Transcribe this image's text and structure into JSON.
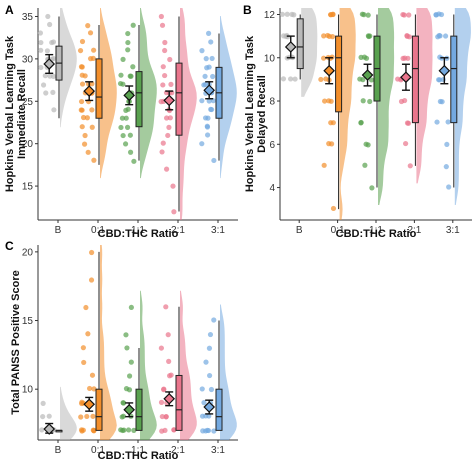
{
  "chart_data": [
    {
      "panel": "A",
      "type": "raincloud",
      "xlabel": "CBD:THC Ratio",
      "ylabel": [
        "Hopkins Verbal Learning Task",
        "Immediate Recall"
      ],
      "categories": [
        "B",
        "0:1",
        "1:1",
        "2:1",
        "3:1"
      ],
      "ylim": [
        11,
        36
      ],
      "yticks": [
        15,
        20,
        25,
        30,
        35
      ],
      "colors": [
        "#b9b9b9",
        "#f28e2b",
        "#59a14f",
        "#e9758c",
        "#74a9e0"
      ],
      "means": [
        29.4,
        26.2,
        25.7,
        25.1,
        26.3
      ],
      "ci": [
        [
          28.3,
          30.5
        ],
        [
          25.1,
          27.3
        ],
        [
          24.6,
          26.8
        ],
        [
          24.0,
          26.2
        ],
        [
          25.3,
          27.3
        ]
      ],
      "box": [
        [
          27.5,
          29.5,
          31.5
        ],
        [
          23.0,
          25.5,
          30.0
        ],
        [
          22.0,
          26.0,
          28.5
        ],
        [
          21.0,
          26.0,
          29.5
        ],
        [
          23.0,
          26.0,
          29.0
        ]
      ],
      "whisker": [
        [
          23.0,
          35.0
        ],
        [
          17.5,
          34.0
        ],
        [
          18.0,
          34.0
        ],
        [
          12.0,
          35.0
        ],
        [
          18.0,
          33.0
        ]
      ],
      "points": [
        [
          24,
          26,
          27,
          28,
          28,
          29,
          29,
          30,
          30,
          30,
          31,
          31,
          32,
          32,
          33,
          34,
          35,
          26,
          28,
          30,
          32
        ],
        [
          18,
          19,
          20,
          21,
          22,
          23,
          23,
          24,
          24,
          25,
          25,
          26,
          26,
          26,
          27,
          27,
          28,
          28,
          29,
          29,
          30,
          30,
          31,
          32,
          33,
          34,
          22,
          24,
          27,
          31
        ],
        [
          18,
          19,
          20,
          21,
          22,
          22,
          23,
          23,
          24,
          25,
          25,
          26,
          26,
          26,
          27,
          27,
          28,
          28,
          29,
          30,
          31,
          32,
          33,
          34,
          21,
          24,
          28
        ],
        [
          12,
          15,
          17,
          19,
          20,
          21,
          22,
          23,
          24,
          24,
          25,
          25,
          26,
          26,
          27,
          27,
          28,
          29,
          30,
          31,
          32,
          34,
          35,
          23,
          26
        ],
        [
          18,
          20,
          21,
          22,
          23,
          23,
          24,
          24,
          25,
          25,
          26,
          26,
          26,
          27,
          27,
          28,
          28,
          29,
          29,
          30,
          31,
          32,
          33,
          22,
          25,
          27,
          30
        ]
      ]
    },
    {
      "panel": "B",
      "type": "raincloud",
      "xlabel": "CBD:THC Ratio",
      "ylabel": [
        "Hopkins Verbal Learning Task",
        "Delayed Recall"
      ],
      "categories": [
        "B",
        "0:1",
        "1:1",
        "2:1",
        "3:1"
      ],
      "ylim": [
        2.5,
        12.3
      ],
      "yticks": [
        4,
        6,
        8,
        10,
        12
      ],
      "colors": [
        "#b9b9b9",
        "#f28e2b",
        "#59a14f",
        "#e9758c",
        "#74a9e0"
      ],
      "means": [
        10.5,
        9.4,
        9.2,
        9.1,
        9.4
      ],
      "ci": [
        [
          10.0,
          11.0
        ],
        [
          8.8,
          10.0
        ],
        [
          8.7,
          9.7
        ],
        [
          8.5,
          9.7
        ],
        [
          8.8,
          10.0
        ]
      ],
      "box": [
        [
          9.5,
          10.5,
          11.8
        ],
        [
          7.5,
          10.0,
          11.0
        ],
        [
          8.0,
          9.5,
          11.0
        ],
        [
          7.0,
          9.5,
          11.0
        ],
        [
          7.0,
          9.5,
          11.0
        ]
      ],
      "whisker": [
        [
          9.0,
          12.0
        ],
        [
          3.0,
          12.0
        ],
        [
          4.0,
          12.0
        ],
        [
          5.0,
          12.0
        ],
        [
          4.0,
          12.0
        ]
      ],
      "points": [
        [
          9,
          9,
          10,
          10,
          10,
          11,
          11,
          11,
          12,
          12,
          12,
          12,
          10,
          11,
          9
        ],
        [
          3,
          5,
          6,
          7,
          7,
          8,
          8,
          9,
          9,
          9,
          10,
          10,
          10,
          11,
          11,
          11,
          11,
          12,
          12,
          12,
          12,
          6,
          8,
          10
        ],
        [
          4,
          5,
          6,
          7,
          7,
          8,
          8,
          9,
          9,
          10,
          10,
          10,
          11,
          11,
          11,
          12,
          12,
          12,
          6,
          9
        ],
        [
          5,
          6,
          7,
          8,
          8,
          9,
          9,
          9,
          10,
          10,
          11,
          11,
          11,
          12,
          12,
          12,
          7,
          10
        ],
        [
          4,
          5,
          6,
          7,
          8,
          8,
          9,
          9,
          10,
          10,
          10,
          11,
          11,
          11,
          12,
          12,
          12,
          12,
          7,
          9,
          11
        ]
      ]
    },
    {
      "panel": "C",
      "type": "raincloud",
      "xlabel": "CBD:THC Ratio",
      "ylabel": [
        "Total PANSS Positive Score"
      ],
      "categories": [
        "B",
        "0:1",
        "1:1",
        "2:1",
        "3:1"
      ],
      "ylim": [
        6.3,
        20.5
      ],
      "yticks": [
        10,
        15,
        20
      ],
      "colors": [
        "#b9b9b9",
        "#f28e2b",
        "#59a14f",
        "#e9758c",
        "#74a9e0"
      ],
      "means": [
        7.1,
        8.9,
        8.5,
        9.3,
        8.7
      ],
      "ci": [
        [
          6.8,
          7.5
        ],
        [
          8.4,
          9.4
        ],
        [
          8.0,
          9.0
        ],
        [
          8.8,
          9.8
        ],
        [
          8.2,
          9.2
        ]
      ],
      "box": [
        [
          7.0,
          7.0,
          7.0
        ],
        [
          7.0,
          8.0,
          10.0
        ],
        [
          7.0,
          8.0,
          10.0
        ],
        [
          7.0,
          8.5,
          11.0
        ],
        [
          7.0,
          8.0,
          10.0
        ]
      ],
      "whisker": [
        [
          7.0,
          7.0
        ],
        [
          7.0,
          20.0
        ],
        [
          7.0,
          13.0
        ],
        [
          7.0,
          16.0
        ],
        [
          7.0,
          15.0
        ]
      ],
      "points": [
        [
          7,
          7,
          7,
          7,
          7,
          7,
          7,
          8,
          8,
          9
        ],
        [
          7,
          7,
          7,
          7,
          7,
          7,
          8,
          8,
          8,
          9,
          9,
          9,
          10,
          10,
          11,
          12,
          13,
          14,
          16,
          18,
          20
        ],
        [
          7,
          7,
          7,
          7,
          7,
          8,
          8,
          8,
          9,
          9,
          10,
          10,
          11,
          12,
          13,
          14,
          16
        ],
        [
          7,
          7,
          7,
          7,
          8,
          8,
          8,
          9,
          9,
          10,
          10,
          11,
          11,
          12,
          13,
          14,
          16
        ],
        [
          7,
          7,
          7,
          7,
          7,
          8,
          8,
          8,
          9,
          9,
          10,
          10,
          11,
          12,
          13,
          14,
          15
        ]
      ]
    }
  ]
}
